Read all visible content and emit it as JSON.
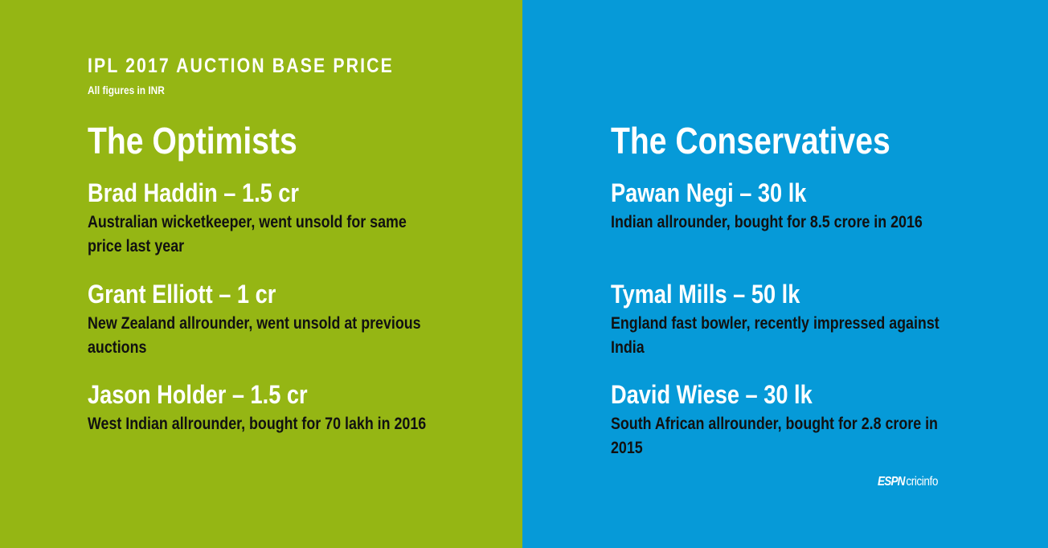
{
  "header": {
    "title": "IPL 2017 AUCTION BASE PRICE",
    "subtitle": "All figures in INR"
  },
  "columns": [
    {
      "heading": "The Optimists",
      "items": [
        {
          "title": "Brad Haddin – 1.5 cr",
          "description": "Australian wicketkeeper, went unsold for same price last year"
        },
        {
          "title": "Grant Elliott – 1 cr",
          "description": "New Zealand allrounder, went unsold at previous auctions"
        },
        {
          "title": "Jason Holder – 1.5 cr",
          "description": "West Indian allrounder, bought for 70 lakh in 2016"
        }
      ]
    },
    {
      "heading": "The Conservatives",
      "items": [
        {
          "title": "Pawan Negi – 30 lk",
          "description": "Indian allrounder, bought for 8.5 crore in 2016"
        },
        {
          "title": "Tymal Mills – 50 lk",
          "description": "England fast bowler, recently impressed against India"
        },
        {
          "title": "David Wiese – 30 lk",
          "description": "South African allrounder, bought for 2.8 crore in 2015"
        }
      ]
    }
  ],
  "logo": {
    "brand": "ESPN",
    "name": "cricinfo"
  }
}
